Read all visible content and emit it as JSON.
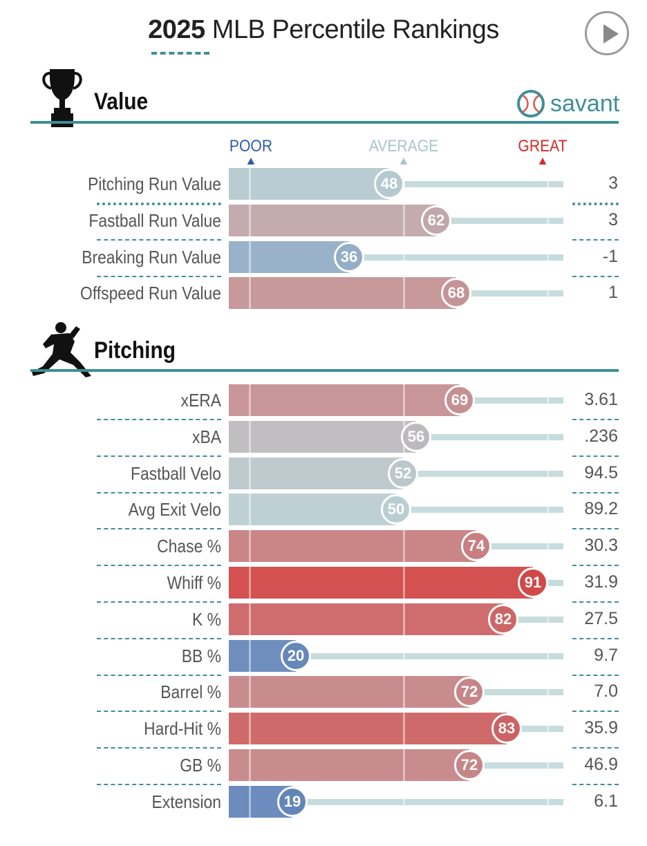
{
  "title": {
    "year": "2025",
    "text": "MLB Percentile Rankings"
  },
  "icons": {
    "play": "play-icon",
    "trophy": "trophy-icon",
    "pitcher": "pitcher-icon",
    "savant": "baseball-icon"
  },
  "brand": {
    "name": "savant",
    "color": "#3f8e97"
  },
  "scale_labels": {
    "poor": "POOR",
    "average": "AVERAGE",
    "great": "GREAT",
    "poor_color": "#2e5aa8",
    "average_color": "#a9c6c9",
    "great_color": "#d42a2a"
  },
  "sections": [
    {
      "name": "Value",
      "rows": [
        {
          "label": "Pitching Run Value",
          "percentile": 48,
          "value": "3"
        },
        {
          "label": "Fastball Run Value",
          "percentile": 62,
          "value": "3"
        },
        {
          "label": "Breaking Run Value",
          "percentile": 36,
          "value": "-1"
        },
        {
          "label": "Offspeed Run Value",
          "percentile": 68,
          "value": "1"
        }
      ]
    },
    {
      "name": "Pitching",
      "rows": [
        {
          "label": "xERA",
          "percentile": 69,
          "value": "3.61"
        },
        {
          "label": "xBA",
          "percentile": 56,
          "value": ".236"
        },
        {
          "label": "Fastball Velo",
          "percentile": 52,
          "value": "94.5"
        },
        {
          "label": "Avg Exit Velo",
          "percentile": 50,
          "value": "89.2"
        },
        {
          "label": "Chase %",
          "percentile": 74,
          "value": "30.3"
        },
        {
          "label": "Whiff %",
          "percentile": 91,
          "value": "31.9"
        },
        {
          "label": "K %",
          "percentile": 82,
          "value": "27.5"
        },
        {
          "label": "BB %",
          "percentile": 20,
          "value": "9.7"
        },
        {
          "label": "Barrel %",
          "percentile": 72,
          "value": "7.0"
        },
        {
          "label": "Hard-Hit %",
          "percentile": 83,
          "value": "35.9"
        },
        {
          "label": "GB %",
          "percentile": 72,
          "value": "46.9"
        },
        {
          "label": "Extension",
          "percentile": 19,
          "value": "6.1"
        }
      ]
    }
  ]
}
